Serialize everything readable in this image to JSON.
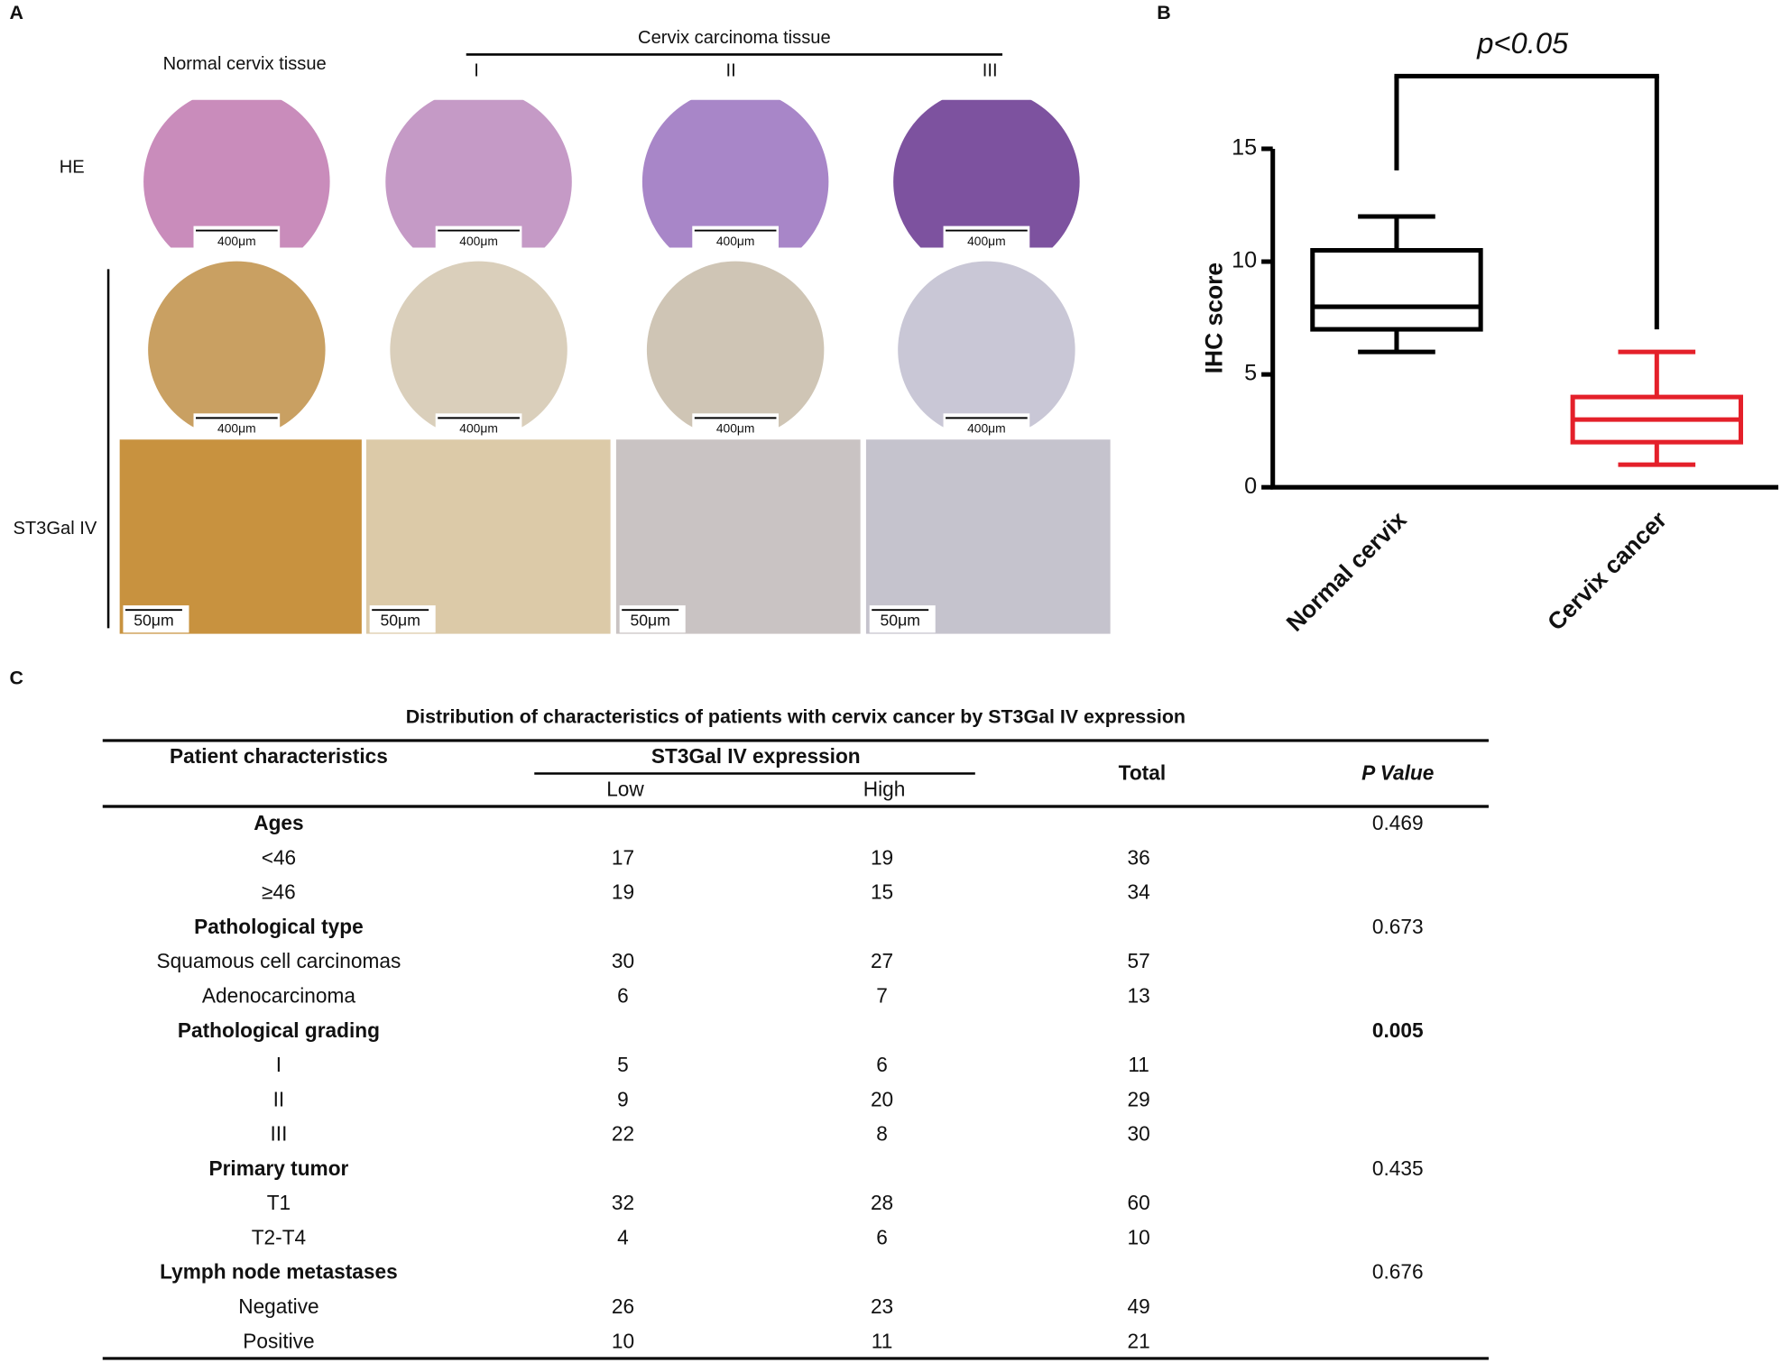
{
  "panels": [
    "A",
    "B",
    "C"
  ],
  "panel_a": {
    "normal_title": "Normal cervix tissue",
    "cancer_title": "Cervix carcinoma tissue",
    "grades": [
      "I",
      "II",
      "III"
    ],
    "rows": [
      "HE",
      "ST3Gal IV"
    ],
    "scale_labels": [
      "400μm",
      "400μm",
      "400μm",
      "400μm",
      "400μm",
      "400μm",
      "400μm",
      "400μm",
      "50μm",
      "50μm",
      "50μm",
      "50μm"
    ]
  },
  "chart_data": {
    "type": "box",
    "annotation": "p<0.05",
    "y_label": "IHC score",
    "categories": [
      "Normal cervix",
      "Cervix cancer"
    ],
    "series": [
      {
        "name": "Normal cervix",
        "color": "#000000",
        "whisker_low": 6,
        "q1": 7,
        "median": 8,
        "q3": 10.5,
        "whisker_high": 12
      },
      {
        "name": "Cervix cancer",
        "color": "#e4202a",
        "whisker_low": 1,
        "q1": 2,
        "median": 3,
        "q3": 4,
        "whisker_high": 6
      }
    ],
    "ylim": [
      0,
      15
    ],
    "yticks": [
      0,
      5,
      10,
      15
    ]
  },
  "table": {
    "title": "Distribution of characteristics of patients with cervix cancer by ST3Gal IV expression",
    "header": {
      "characteristics": "Patient characteristics",
      "expression": "ST3Gal IV expression",
      "low": "Low",
      "high": "High",
      "total": "Total",
      "p": "P Value"
    },
    "groups": [
      {
        "name": "Ages",
        "p": 0.469,
        "rows": [
          [
            "<46",
            17,
            19,
            36
          ],
          [
            "≥46",
            19,
            15,
            34
          ]
        ]
      },
      {
        "name": "Pathological type",
        "p": 0.673,
        "rows": [
          [
            "Squamous cell carcinomas",
            30,
            27,
            57
          ],
          [
            "Adenocarcinoma",
            6,
            7,
            13
          ]
        ]
      },
      {
        "name": "Pathological grading",
        "p": 0.005,
        "p_bold": true,
        "rows": [
          [
            "I",
            5,
            6,
            11
          ],
          [
            "II",
            9,
            20,
            29
          ],
          [
            "III",
            22,
            8,
            30
          ]
        ]
      },
      {
        "name": "Primary tumor",
        "p": 0.435,
        "rows": [
          [
            "T1",
            32,
            28,
            60
          ],
          [
            "T2-T4",
            4,
            6,
            10
          ]
        ]
      },
      {
        "name": "Lymph node metastases",
        "p": 0.676,
        "rows": [
          [
            "Negative",
            26,
            23,
            49
          ],
          [
            "Positive",
            10,
            11,
            21
          ]
        ]
      }
    ]
  }
}
